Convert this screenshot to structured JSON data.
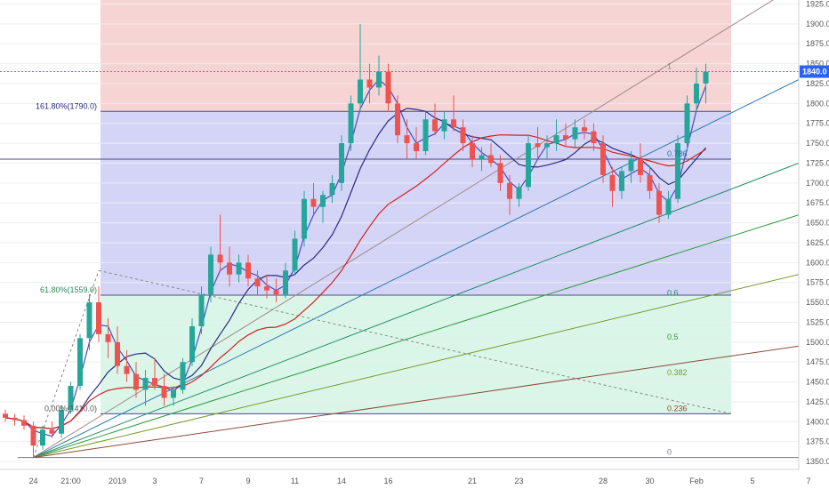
{
  "chart_data": {
    "type": "candlestick",
    "y_axis": {
      "min": 1340,
      "max": 1930,
      "ticks": [
        1925,
        1900,
        1875,
        1850,
        1825,
        1800,
        1775,
        1750,
        1725,
        1700,
        1675,
        1650,
        1625,
        1600,
        1575,
        1550,
        1525,
        1500,
        1475,
        1450,
        1425,
        1400,
        1375,
        1350
      ]
    },
    "x_axis": {
      "ticks": [
        {
          "label": "24",
          "i": 3
        },
        {
          "label": "21:00",
          "i": 7
        },
        {
          "label": "2019",
          "i": 12
        },
        {
          "label": "3",
          "i": 16
        },
        {
          "label": "7",
          "i": 21
        },
        {
          "label": "9",
          "i": 26
        },
        {
          "label": "11",
          "i": 31
        },
        {
          "label": "14",
          "i": 36
        },
        {
          "label": "16",
          "i": 41
        },
        {
          "label": "21",
          "i": 50
        },
        {
          "label": "23",
          "i": 55
        },
        {
          "label": "28",
          "i": 64
        },
        {
          "label": "30",
          "i": 69
        },
        {
          "label": "Feb",
          "i": 74
        },
        {
          "label": "5",
          "i": 80
        },
        {
          "label": "7",
          "i": 86
        }
      ]
    },
    "last_price": {
      "label": "1840.0",
      "value": 1840,
      "color": "#2962ff"
    },
    "fib_extension": {
      "levels": [
        {
          "ratio": 0,
          "value": 1355,
          "label": "0",
          "color": "#787b86"
        },
        {
          "ratio": 0.236,
          "value": 1410,
          "label": "0.236",
          "color": "#8c4a3a"
        },
        {
          "ratio": 0.382,
          "value": 1455,
          "label": "0.382",
          "color": "#7a9a2a"
        },
        {
          "ratio": 0.5,
          "value": 1500,
          "label": "0.5",
          "color": "#2e9c3f"
        },
        {
          "ratio": 0.618,
          "value": 1555,
          "label": "0.6",
          "color": "#1e8c6a"
        },
        {
          "ratio": 0.786,
          "value": 1730,
          "label": "0.786",
          "color": "#2a6eb0"
        },
        {
          "ratio": 1,
          "value": 1840,
          "label": "1",
          "color": "#8a8a8a"
        }
      ],
      "retracement_labels": [
        {
          "text": "161.80%(1790.0)",
          "value": 1790,
          "color": "#2a2a80"
        },
        {
          "text": "61.80%(1559.0)",
          "value": 1559,
          "color": "#2a8a5a"
        },
        {
          "text": "0.00%(1410.0)",
          "value": 1410,
          "color": "#555555"
        }
      ],
      "zones": [
        {
          "from": 1790,
          "to": 1930,
          "color": "#f4cccc"
        },
        {
          "from": 1559,
          "to": 1790,
          "color": "#ccccf4"
        },
        {
          "from": 1410,
          "to": 1559,
          "color": "#d4f4e4"
        }
      ]
    },
    "horizontal_lines": [
      1840,
      1790,
      1730,
      1559,
      1410
    ],
    "candles": [
      [
        1410,
        1415,
        1400,
        1405
      ],
      [
        1405,
        1410,
        1395,
        1402
      ],
      [
        1402,
        1408,
        1390,
        1395
      ],
      [
        1395,
        1400,
        1355,
        1370
      ],
      [
        1370,
        1395,
        1365,
        1390
      ],
      [
        1390,
        1400,
        1380,
        1385
      ],
      [
        1385,
        1420,
        1380,
        1415
      ],
      [
        1415,
        1450,
        1410,
        1445
      ],
      [
        1445,
        1510,
        1440,
        1505
      ],
      [
        1505,
        1560,
        1490,
        1550
      ],
      [
        1550,
        1570,
        1500,
        1510
      ],
      [
        1510,
        1530,
        1480,
        1500
      ],
      [
        1500,
        1520,
        1460,
        1470
      ],
      [
        1470,
        1490,
        1450,
        1460
      ],
      [
        1460,
        1475,
        1430,
        1440
      ],
      [
        1440,
        1465,
        1420,
        1455
      ],
      [
        1455,
        1480,
        1440,
        1445
      ],
      [
        1445,
        1460,
        1420,
        1430
      ],
      [
        1430,
        1445,
        1420,
        1440
      ],
      [
        1440,
        1480,
        1435,
        1475
      ],
      [
        1475,
        1530,
        1470,
        1520
      ],
      [
        1520,
        1570,
        1510,
        1560
      ],
      [
        1560,
        1620,
        1550,
        1610
      ],
      [
        1610,
        1660,
        1590,
        1600
      ],
      [
        1600,
        1620,
        1570,
        1585
      ],
      [
        1585,
        1610,
        1575,
        1600
      ],
      [
        1600,
        1610,
        1570,
        1580
      ],
      [
        1580,
        1590,
        1560,
        1570
      ],
      [
        1570,
        1585,
        1555,
        1565
      ],
      [
        1565,
        1580,
        1550,
        1560
      ],
      [
        1560,
        1600,
        1555,
        1590
      ],
      [
        1590,
        1640,
        1585,
        1630
      ],
      [
        1630,
        1690,
        1620,
        1680
      ],
      [
        1680,
        1700,
        1660,
        1670
      ],
      [
        1670,
        1690,
        1650,
        1685
      ],
      [
        1685,
        1710,
        1675,
        1700
      ],
      [
        1700,
        1760,
        1690,
        1750
      ],
      [
        1750,
        1810,
        1740,
        1800
      ],
      [
        1800,
        1900,
        1790,
        1830
      ],
      [
        1830,
        1850,
        1800,
        1820
      ],
      [
        1820,
        1860,
        1810,
        1840
      ],
      [
        1840,
        1850,
        1790,
        1800
      ],
      [
        1800,
        1810,
        1750,
        1760
      ],
      [
        1760,
        1780,
        1730,
        1750
      ],
      [
        1750,
        1770,
        1730,
        1740
      ],
      [
        1740,
        1790,
        1735,
        1780
      ],
      [
        1780,
        1800,
        1760,
        1765
      ],
      [
        1765,
        1790,
        1755,
        1780
      ],
      [
        1780,
        1810,
        1765,
        1770
      ],
      [
        1770,
        1780,
        1740,
        1750
      ],
      [
        1750,
        1760,
        1720,
        1730
      ],
      [
        1730,
        1745,
        1715,
        1735
      ],
      [
        1735,
        1750,
        1720,
        1725
      ],
      [
        1725,
        1735,
        1690,
        1700
      ],
      [
        1700,
        1710,
        1660,
        1680
      ],
      [
        1680,
        1700,
        1670,
        1695
      ],
      [
        1695,
        1760,
        1690,
        1750
      ],
      [
        1750,
        1770,
        1730,
        1745
      ],
      [
        1745,
        1760,
        1730,
        1750
      ],
      [
        1750,
        1780,
        1740,
        1760
      ],
      [
        1760,
        1775,
        1745,
        1755
      ],
      [
        1755,
        1780,
        1745,
        1770
      ],
      [
        1770,
        1780,
        1755,
        1765
      ],
      [
        1765,
        1775,
        1740,
        1750
      ],
      [
        1750,
        1760,
        1700,
        1710
      ],
      [
        1710,
        1720,
        1670,
        1690
      ],
      [
        1690,
        1720,
        1680,
        1715
      ],
      [
        1715,
        1740,
        1700,
        1730
      ],
      [
        1730,
        1750,
        1700,
        1710
      ],
      [
        1710,
        1720,
        1680,
        1690
      ],
      [
        1690,
        1700,
        1650,
        1660
      ],
      [
        1660,
        1690,
        1655,
        1680
      ],
      [
        1680,
        1760,
        1675,
        1750
      ],
      [
        1750,
        1810,
        1740,
        1800
      ],
      [
        1800,
        1845,
        1790,
        1825
      ],
      [
        1825,
        1850,
        1800,
        1840
      ]
    ]
  }
}
